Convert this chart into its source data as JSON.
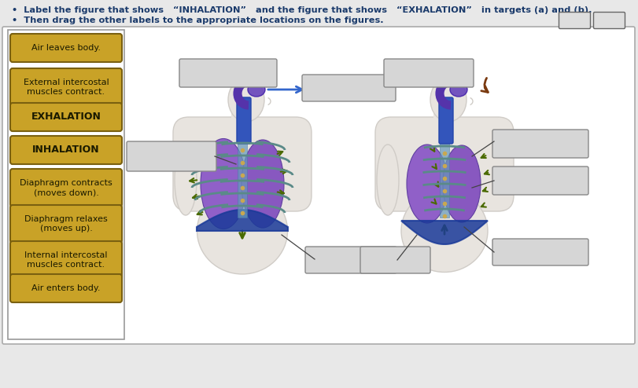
{
  "title_line1": "  •  Label the figure that shows   “INHALATION”   and the figure that shows   “EXHALATION”   in targets (a) and (b).",
  "title_line2": "  •  Then drag the other labels to the appropriate locations on the figures.",
  "title_color": "#1a3a6b",
  "bg_color": "#e8e8e8",
  "panel_bg": "#ffffff",
  "panel_border": "#aaaaaa",
  "left_panel_border": "#999999",
  "btn_fill": "#c9a227",
  "btn_border": "#7a6010",
  "btn_text": "#1a1a00",
  "box_fill": "#d6d6d6",
  "box_border": "#888888",
  "body_skin": "#e8e4df",
  "body_skin_dark": "#d0ccc7",
  "lung_purple": "#8060b0",
  "lung_dark": "#6040a0",
  "trachea_blue": "#4455bb",
  "diaphragm_blue": "#2244aa",
  "rib_color": "#5a8888",
  "rib_dot": "#c8a850",
  "arrow_green": "#4a6a00",
  "arrow_blue": "#3366cc",
  "arrow_brown": "#7a3a10",
  "sternum_color": "#6688aa",
  "buttons": [
    {
      "label": "Air leaves body.",
      "bold": false,
      "lines": 1
    },
    {
      "label": "External intercostal\nmuscles contract.",
      "bold": false,
      "lines": 2
    },
    {
      "label": "EXHALATION",
      "bold": true,
      "lines": 1
    },
    {
      "label": "INHALATION",
      "bold": true,
      "lines": 1
    },
    {
      "label": "Diaphragm contracts\n(moves down).",
      "bold": false,
      "lines": 2
    },
    {
      "label": "Diaphragm relaxes\n(moves up).",
      "bold": false,
      "lines": 2
    },
    {
      "label": "Internal intercostal\nmuscles contract.",
      "bold": false,
      "lines": 2
    },
    {
      "label": "Air enters body.",
      "bold": false,
      "lines": 1
    }
  ]
}
